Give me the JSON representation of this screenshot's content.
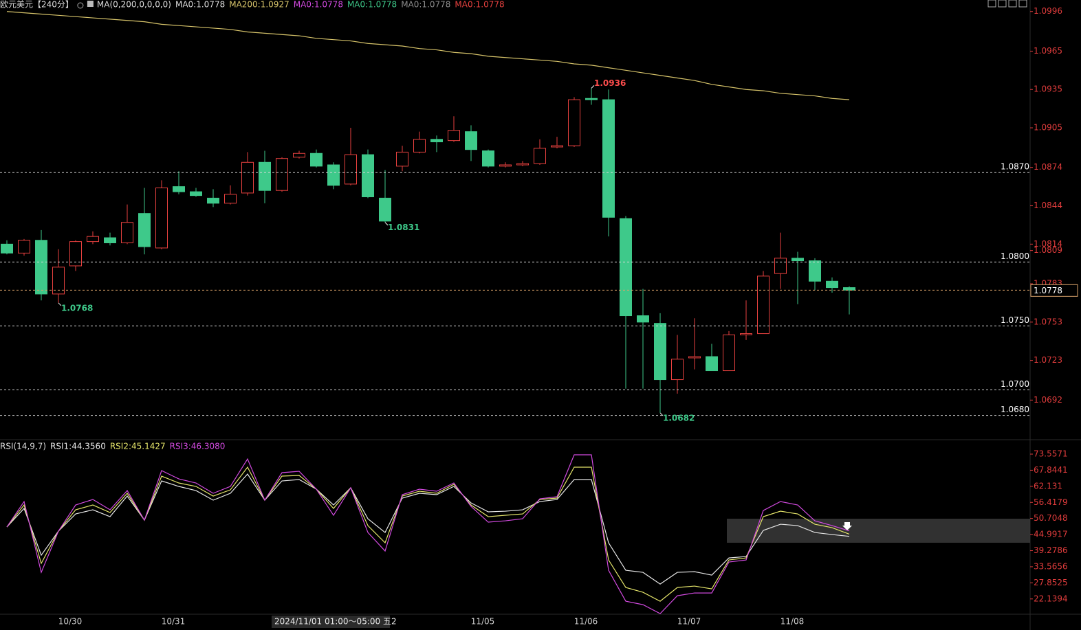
{
  "chart_data": [
    {
      "type": "candlestick",
      "title": "欧元美元【240分】",
      "header_items": [
        {
          "label": "MA(0,200,0,0,0,0)",
          "color": "#dddddd"
        },
        {
          "label": "MA0:1.0778",
          "color": "#dddddd"
        },
        {
          "label": "MA0:1.0778",
          "color": "#d24ae0"
        },
        {
          "label": "MA0:1.0778",
          "color": "#3ec98a"
        },
        {
          "label": "MA0:1.0778",
          "color": "#8c8c8c"
        },
        {
          "label": "MA0:1.0778",
          "color": "#e8413f"
        }
      ],
      "categories": [
        null,
        null,
        null,
        null,
        "10/30",
        null,
        null,
        null,
        null,
        null,
        "10/31",
        null,
        null,
        null,
        null,
        null,
        null,
        null,
        null,
        null,
        null,
        null,
        null,
        null,
        null,
        null,
        null,
        null,
        "11/05",
        null,
        null,
        null,
        null,
        null,
        "11/06",
        null,
        null,
        null,
        null,
        null,
        "11/07",
        null,
        null,
        null,
        null,
        null,
        "11/08",
        null,
        null,
        null
      ],
      "open": [
        1.0814,
        1.0807,
        1.0817,
        1.0775,
        1.0797,
        1.0816,
        1.0819,
        1.0815,
        1.0838,
        1.0811,
        1.0859,
        1.0855,
        1.085,
        1.0846,
        1.0854,
        1.0878,
        1.0856,
        1.0882,
        1.0885,
        1.0876,
        1.0861,
        1.0884,
        1.085,
        1.0875,
        1.0886,
        1.0896,
        1.0895,
        1.0902,
        1.0887,
        1.0875,
        1.0876,
        1.0877,
        1.089,
        1.0891,
        1.0928,
        1.0927,
        1.0834,
        1.0758,
        1.0752,
        1.0708,
        1.0725,
        1.0726,
        1.0715,
        1.0743,
        1.0744,
        1.0791,
        1.0803,
        1.0801,
        1.0785,
        1.078
      ],
      "high": [
        1.0817,
        1.0818,
        1.0825,
        1.081,
        1.0817,
        1.0824,
        1.0823,
        1.0845,
        1.0858,
        1.0864,
        1.0871,
        1.0858,
        1.0857,
        1.086,
        1.0886,
        1.0887,
        1.0882,
        1.0887,
        1.0888,
        1.0878,
        1.0905,
        1.0888,
        1.0872,
        1.0891,
        1.0902,
        1.0899,
        1.0914,
        1.0907,
        1.0888,
        1.0878,
        1.0879,
        1.0896,
        1.0898,
        1.0929,
        1.0936,
        1.0935,
        1.0836,
        1.0779,
        1.076,
        1.0743,
        1.0756,
        1.0736,
        1.0746,
        1.077,
        1.0793,
        1.0823,
        1.0808,
        1.0803,
        1.0788,
        1.0781
      ],
      "low": [
        1.0806,
        1.0805,
        1.077,
        1.0768,
        1.0793,
        1.0814,
        1.0813,
        1.0814,
        1.0806,
        1.081,
        1.0853,
        1.0851,
        1.0843,
        1.0845,
        1.0852,
        1.0846,
        1.0855,
        1.0881,
        1.0874,
        1.0857,
        1.086,
        1.085,
        1.0831,
        1.0871,
        1.0885,
        1.0886,
        1.0894,
        1.0879,
        1.0874,
        1.0874,
        1.0875,
        1.0876,
        1.0889,
        1.089,
        1.0923,
        1.082,
        1.0701,
        1.0701,
        1.0682,
        1.0697,
        1.0716,
        1.0715,
        1.0715,
        1.0739,
        1.0744,
        1.0779,
        1.0767,
        1.0778,
        1.0776,
        1.0759
      ],
      "close": [
        1.0807,
        1.0817,
        1.0775,
        1.0796,
        1.0816,
        1.082,
        1.0815,
        1.0831,
        1.0812,
        1.0858,
        1.0855,
        1.0852,
        1.0846,
        1.0853,
        1.0878,
        1.0856,
        1.0881,
        1.0885,
        1.0875,
        1.086,
        1.0884,
        1.0851,
        1.0832,
        1.0886,
        1.0896,
        1.0894,
        1.0903,
        1.0888,
        1.0875,
        1.0876,
        1.0877,
        1.0889,
        1.0891,
        1.0927,
        1.0927,
        1.0835,
        1.0758,
        1.0753,
        1.0708,
        1.0724,
        1.0726,
        1.0715,
        1.0743,
        1.0744,
        1.0789,
        1.0803,
        1.0801,
        1.0785,
        1.078,
        1.0778
      ],
      "up_color": "#e8413f",
      "down_color": "#3ec98a",
      "series": [
        {
          "name": "MA200:1.0927",
          "color": "#d6c36a",
          "values": [
            1.0996,
            1.0995,
            1.0994,
            1.0993,
            1.0992,
            1.0991,
            1.099,
            1.0989,
            1.0988,
            1.0986,
            1.0985,
            1.0984,
            1.0983,
            1.0982,
            1.098,
            1.0979,
            1.0978,
            1.0977,
            1.0975,
            1.0974,
            1.0973,
            1.0971,
            1.097,
            1.0969,
            1.0967,
            1.0966,
            1.0964,
            1.0963,
            1.0961,
            1.096,
            1.0959,
            1.0958,
            1.0957,
            1.0955,
            1.0954,
            1.0952,
            1.095,
            1.0948,
            1.0946,
            1.0944,
            1.0942,
            1.0939,
            1.0937,
            1.0935,
            1.0934,
            1.0932,
            1.0931,
            1.093,
            1.0928,
            1.0927
          ]
        }
      ],
      "ylim": [
        1.0661,
        1.1005
      ],
      "yticks": [
        1.0996,
        1.0965,
        1.0935,
        1.0905,
        1.0874,
        1.0844,
        1.0814,
        1.0809,
        1.0783,
        1.0753,
        1.0723,
        1.0692
      ],
      "reference_lines": [
        {
          "value": 1.087,
          "label": "1.0870"
        },
        {
          "value": 1.08,
          "label": "1.0800"
        },
        {
          "value": 1.075,
          "label": "1.0750"
        },
        {
          "value": 1.07,
          "label": "1.0700"
        },
        {
          "value": 1.068,
          "label": "1.0680"
        }
      ],
      "last_price": 1.0778,
      "marked_points": [
        {
          "field": "high",
          "index": 34,
          "color": "#ff4d4d"
        },
        {
          "field": "low",
          "index": 3,
          "color": "#3ec98a"
        },
        {
          "field": "low",
          "index": 22,
          "color": "#3ec98a"
        },
        {
          "field": "low",
          "index": 38,
          "color": "#3ec98a"
        }
      ],
      "crosshair_label": "2024/11/01 01:00～05:00 五2"
    },
    {
      "type": "line",
      "title": "RSI(14,9,7)",
      "series": [
        {
          "name": "RSI1:44.3560",
          "color": "#e6e6e6",
          "values": [
            47.69,
            54.28,
            37.68,
            46.22,
            52.32,
            53.79,
            51.35,
            58.67,
            50.13,
            64.04,
            62.09,
            60.62,
            57.21,
            59.65,
            66.48,
            57.21,
            64.04,
            64.53,
            61.11,
            55.5,
            61.6,
            50.61,
            45.73,
            57.94,
            59.65,
            59.16,
            62.09,
            56.23,
            53.06,
            53.3,
            53.79,
            56.72,
            57.45,
            64.53,
            64.53,
            42.07,
            32.31,
            31.58,
            27.43,
            31.58,
            31.82,
            30.6,
            36.7,
            37.19,
            46.47,
            48.66,
            48.18,
            45.73,
            45.0,
            44.356
          ]
        },
        {
          "name": "RSI2:45.1427",
          "color": "#e4e46a",
          "values": [
            47.69,
            55.5,
            34.75,
            46.22,
            53.79,
            55.5,
            52.81,
            59.65,
            50.13,
            65.75,
            63.31,
            62.09,
            58.67,
            60.87,
            68.92,
            57.21,
            65.75,
            65.99,
            61.11,
            54.28,
            61.6,
            48.18,
            42.07,
            58.67,
            60.38,
            59.65,
            62.82,
            55.5,
            51.35,
            51.84,
            52.32,
            57.45,
            57.94,
            68.92,
            68.92,
            35.97,
            26.21,
            24.5,
            21.33,
            26.21,
            26.7,
            25.72,
            35.97,
            36.7,
            51.35,
            53.3,
            52.32,
            48.66,
            47.44,
            45.1427
          ]
        },
        {
          "name": "RSI3:46.3080",
          "color": "#d24ae0",
          "values": [
            47.69,
            56.72,
            31.58,
            46.22,
            55.5,
            57.45,
            53.79,
            60.62,
            50.13,
            67.7,
            64.77,
            63.31,
            59.65,
            62.09,
            71.85,
            57.21,
            66.97,
            67.46,
            61.11,
            51.84,
            61.6,
            45.73,
            39.14,
            59.16,
            61.11,
            60.38,
            63.31,
            55.01,
            49.4,
            49.88,
            50.61,
            57.69,
            58.43,
            73.32,
            73.32,
            32.31,
            21.33,
            20.11,
            16.93,
            23.28,
            24.26,
            24.26,
            35.24,
            35.97,
            53.54,
            56.72,
            55.5,
            49.88,
            48.18,
            46.308
          ]
        }
      ],
      "ylim": [
        15.5,
        77.95
      ],
      "yticks": [
        73.5571,
        67.8441,
        62.131,
        56.4179,
        50.7048,
        44.9917,
        39.2786,
        33.5656,
        27.8525,
        22.1394
      ]
    }
  ]
}
